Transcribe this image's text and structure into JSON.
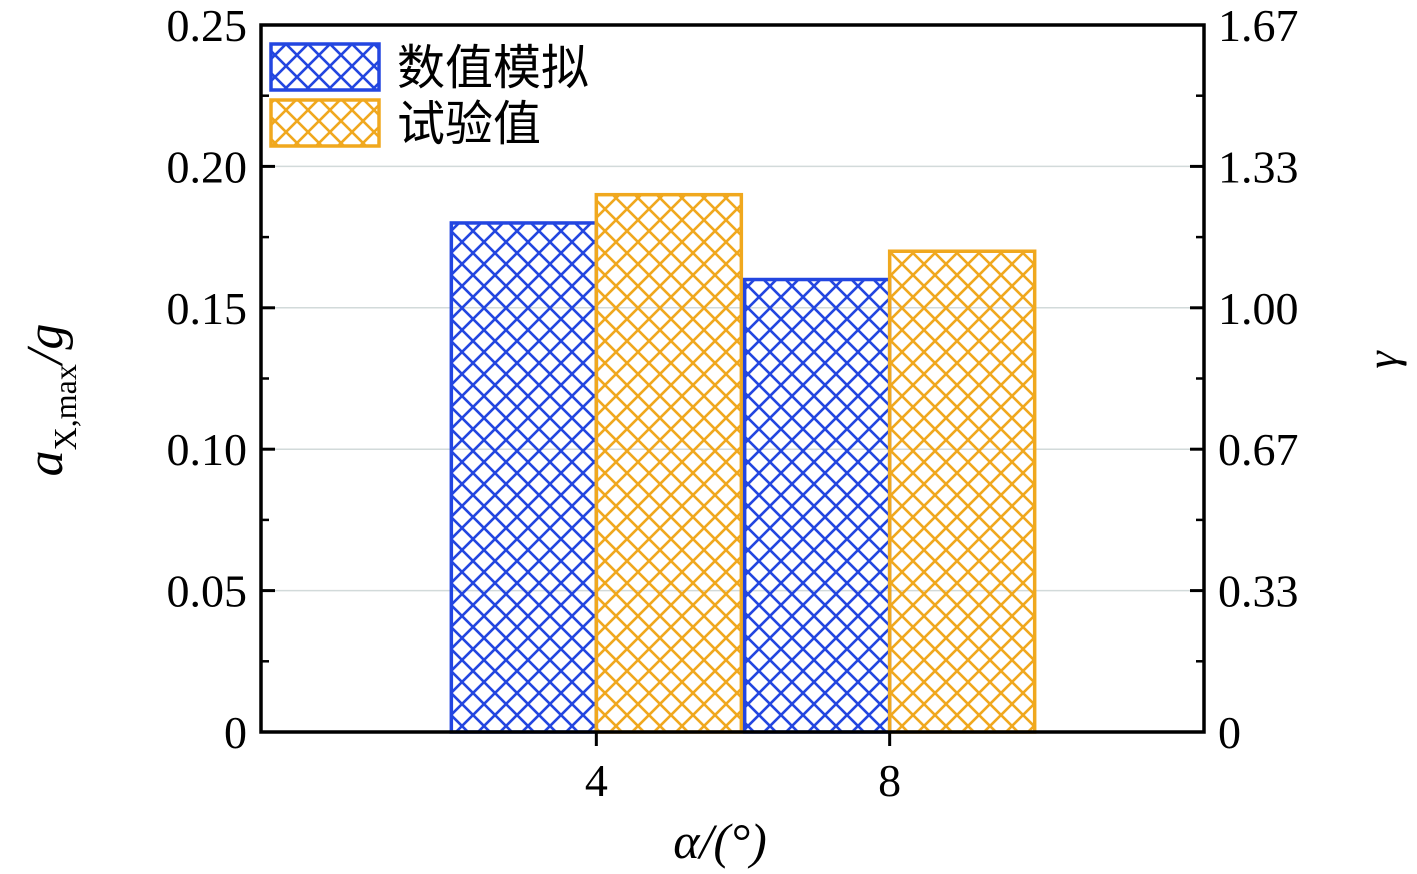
{
  "chart_data": {
    "type": "bar",
    "categories": [
      "4",
      "8"
    ],
    "series": [
      {
        "name": "数值模拟",
        "values": [
          0.18,
          0.16
        ],
        "color": "#2346e0",
        "pattern": "crosshatch"
      },
      {
        "name": "试验值",
        "values": [
          0.19,
          0.17
        ],
        "color": "#f0a81e",
        "pattern": "crosshatch"
      }
    ],
    "xlabel": {
      "main": "α/(°)"
    },
    "ylabel": {
      "a": "a",
      "subscript": "X,max",
      "rest": "/g"
    },
    "y2label": "γ",
    "ylim": [
      0,
      0.25
    ],
    "yticks": [
      "0",
      "0.05",
      "0.10",
      "0.15",
      "0.20",
      "0.25"
    ],
    "y2ticks": [
      "0",
      "0.33",
      "0.67",
      "1.00",
      "1.33",
      "1.67"
    ],
    "grid": true,
    "legend_position": "top-left"
  }
}
